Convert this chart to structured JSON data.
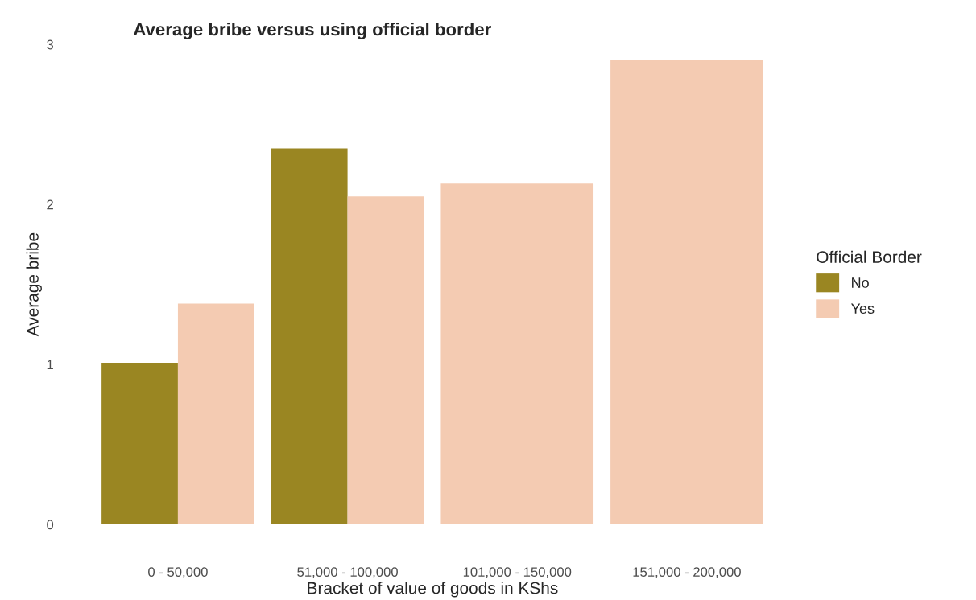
{
  "chart_data": {
    "type": "bar",
    "title": "Average bribe versus using official border",
    "xlabel": "Bracket of value of goods in KShs",
    "ylabel": "Average bribe",
    "legend_title": "Official Border",
    "categories": [
      "0 - 50,000",
      "51,000 - 100,000",
      "101,000 - 150,000",
      "151,000 - 200,000"
    ],
    "series": [
      {
        "name": "No",
        "color": "#9a8622",
        "values": [
          1.01,
          2.35,
          null,
          null
        ]
      },
      {
        "name": "Yes",
        "color": "#f4cbb2",
        "values": [
          1.38,
          2.05,
          2.13,
          2.9
        ]
      }
    ],
    "ylim": [
      0,
      3
    ],
    "yticks": [
      0,
      1,
      2,
      3
    ],
    "grid": false,
    "legend": "right"
  }
}
